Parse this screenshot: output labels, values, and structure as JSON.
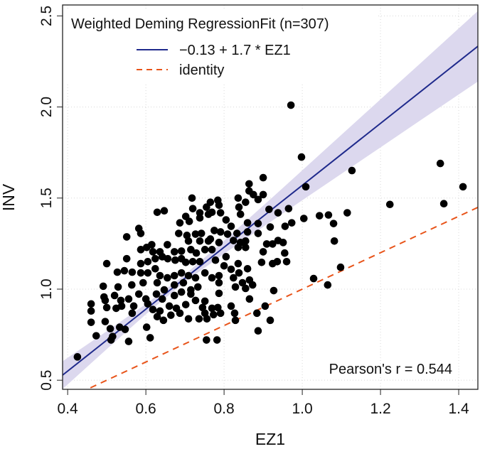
{
  "chart_data": {
    "type": "scatter",
    "title": "",
    "xlabel": "EZ1",
    "ylabel": "INV",
    "xlim": [
      0.387,
      1.449
    ],
    "ylim": [
      0.45,
      2.56
    ],
    "xticks": [
      "0.4",
      "0.6",
      "0.8",
      "1.0",
      "1.2",
      "1.4"
    ],
    "xtick_values": [
      0.4,
      0.6,
      0.8,
      1.0,
      1.2,
      1.4
    ],
    "yticks": [
      "0.5",
      "1.0",
      "1.5",
      "2.0",
      "2.5"
    ],
    "ytick_values": [
      0.5,
      1.0,
      1.5,
      2.0,
      2.5
    ],
    "grid": true,
    "legend": {
      "placement": "top-left",
      "title": "Weighted Deming RegressionFit (n=307)",
      "entries": [
        "−0.13 + 1.7 * EZ1",
        "identity"
      ]
    },
    "annotation": "Pearson's r = 0.544",
    "fit": {
      "intercept": -0.13,
      "slope": 1.7,
      "color": "#1f2a8c"
    },
    "identity": {
      "intercept": 0,
      "slope": 1,
      "color": "#e8541a"
    },
    "ci_band": {
      "color": "#dcd8ee",
      "x": [
        0.38,
        0.5,
        0.6,
        0.7,
        0.8,
        0.9,
        1.0,
        1.1,
        1.2,
        1.3,
        1.45
      ],
      "lower": [
        0.438,
        0.671,
        0.862,
        1.04,
        1.194,
        1.342,
        1.488,
        1.633,
        1.778,
        1.924,
        2.141
      ],
      "upper": [
        0.594,
        0.769,
        0.918,
        1.08,
        1.266,
        1.458,
        1.652,
        1.847,
        2.042,
        2.236,
        2.529
      ]
    },
    "points": [
      [
        0.425,
        0.628
      ],
      [
        0.971,
        2.01
      ],
      [
        0.998,
        1.725
      ],
      [
        1.009,
        1.562
      ],
      [
        1.127,
        1.651
      ],
      [
        1.353,
        1.69
      ],
      [
        1.411,
        1.562
      ],
      [
        1.362,
        1.469
      ],
      [
        1.224,
        1.465
      ],
      [
        1.115,
        1.419
      ],
      [
        1.08,
        1.36
      ],
      [
        1.082,
        1.264
      ],
      [
        1.098,
        1.12
      ],
      [
        1.029,
        1.058
      ],
      [
        1.065,
        1.023
      ],
      [
        1.004,
        1.388
      ],
      [
        1.044,
        1.403
      ],
      [
        1.067,
        1.407
      ],
      [
        0.9,
        1.612
      ],
      [
        0.864,
        1.578
      ],
      [
        0.864,
        1.539
      ],
      [
        0.875,
        1.519
      ],
      [
        0.9,
        1.519
      ],
      [
        0.887,
        1.492
      ],
      [
        0.718,
        1.5
      ],
      [
        0.755,
        1.45
      ],
      [
        0.765,
        1.477
      ],
      [
        0.784,
        1.488
      ],
      [
        0.787,
        1.461
      ],
      [
        0.836,
        1.5
      ],
      [
        0.855,
        1.477
      ],
      [
        0.838,
        1.45
      ],
      [
        0.842,
        1.411
      ],
      [
        0.72,
        1.442
      ],
      [
        0.738,
        1.419
      ],
      [
        0.738,
        1.391
      ],
      [
        0.76,
        1.411
      ],
      [
        0.769,
        1.422
      ],
      [
        0.791,
        1.419
      ],
      [
        0.629,
        1.422
      ],
      [
        0.647,
        1.43
      ],
      [
        0.702,
        1.399
      ],
      [
        0.711,
        1.372
      ],
      [
        0.687,
        1.364
      ],
      [
        0.805,
        1.38
      ],
      [
        0.818,
        1.345
      ],
      [
        0.86,
        1.364
      ],
      [
        0.887,
        1.36
      ],
      [
        0.915,
        1.438
      ],
      [
        0.938,
        1.419
      ],
      [
        0.965,
        1.442
      ],
      [
        0.956,
        1.345
      ],
      [
        0.973,
        1.364
      ],
      [
        0.582,
        1.333
      ],
      [
        0.587,
        1.306
      ],
      [
        0.551,
        1.287
      ],
      [
        0.684,
        1.306
      ],
      [
        0.705,
        1.295
      ],
      [
        0.727,
        1.302
      ],
      [
        0.742,
        1.306
      ],
      [
        0.775,
        1.322
      ],
      [
        0.791,
        1.314
      ],
      [
        0.809,
        1.302
      ],
      [
        0.833,
        1.306
      ],
      [
        0.86,
        1.314
      ],
      [
        0.887,
        1.306
      ],
      [
        0.918,
        1.341
      ],
      [
        0.709,
        1.264
      ],
      [
        0.738,
        1.264
      ],
      [
        0.76,
        1.264
      ],
      [
        0.765,
        1.275
      ],
      [
        0.787,
        1.256
      ],
      [
        0.824,
        1.267
      ],
      [
        0.842,
        1.256
      ],
      [
        0.855,
        1.264
      ],
      [
        0.836,
        1.229
      ],
      [
        0.855,
        1.229
      ],
      [
        0.909,
        1.248
      ],
      [
        0.924,
        1.248
      ],
      [
        0.938,
        1.267
      ],
      [
        0.951,
        1.256
      ],
      [
        0.955,
        1.198
      ],
      [
        0.9,
        1.205
      ],
      [
        0.587,
        1.217
      ],
      [
        0.602,
        1.229
      ],
      [
        0.615,
        1.244
      ],
      [
        0.618,
        1.205
      ],
      [
        0.636,
        1.205
      ],
      [
        0.655,
        1.244
      ],
      [
        0.673,
        1.205
      ],
      [
        0.691,
        1.209
      ],
      [
        0.715,
        1.217
      ],
      [
        0.729,
        1.198
      ],
      [
        0.751,
        1.217
      ],
      [
        0.769,
        1.217
      ],
      [
        0.778,
        1.159
      ],
      [
        0.805,
        1.178
      ],
      [
        0.5,
        1.14
      ],
      [
        0.551,
        1.167
      ],
      [
        0.587,
        1.14
      ],
      [
        0.605,
        1.151
      ],
      [
        0.624,
        1.167
      ],
      [
        0.642,
        1.178
      ],
      [
        0.656,
        1.167
      ],
      [
        0.675,
        1.159
      ],
      [
        0.691,
        1.167
      ],
      [
        0.702,
        1.147
      ],
      [
        0.72,
        1.151
      ],
      [
        0.738,
        1.151
      ],
      [
        0.896,
        1.147
      ],
      [
        0.924,
        1.14
      ],
      [
        0.936,
        1.151
      ],
      [
        0.96,
        1.151
      ],
      [
        0.8,
        1.128
      ],
      [
        0.818,
        1.109
      ],
      [
        0.836,
        1.14
      ],
      [
        0.838,
        1.089
      ],
      [
        0.86,
        1.112
      ],
      [
        0.527,
        1.093
      ],
      [
        0.545,
        1.101
      ],
      [
        0.565,
        1.093
      ],
      [
        0.587,
        1.089
      ],
      [
        0.605,
        1.089
      ],
      [
        0.624,
        1.112
      ],
      [
        0.636,
        1.074
      ],
      [
        0.655,
        1.062
      ],
      [
        0.673,
        1.074
      ],
      [
        0.691,
        1.089
      ],
      [
        0.709,
        1.074
      ],
      [
        0.727,
        1.062
      ],
      [
        0.751,
        1.089
      ],
      [
        0.769,
        1.062
      ],
      [
        0.787,
        1.074
      ],
      [
        0.824,
        1.062
      ],
      [
        0.847,
        1.035
      ],
      [
        0.865,
        1.05
      ],
      [
        0.873,
        1.023
      ],
      [
        0.491,
        1.016
      ],
      [
        0.529,
        1.012
      ],
      [
        0.564,
        1.023
      ],
      [
        0.593,
        1.035
      ],
      [
        0.629,
        1.035
      ],
      [
        0.647,
        0.996
      ],
      [
        0.673,
        1.023
      ],
      [
        0.696,
        1.035
      ],
      [
        0.715,
        0.996
      ],
      [
        0.733,
        1.012
      ],
      [
        0.787,
        1.035
      ],
      [
        0.787,
        0.977
      ],
      [
        0.829,
        1.012
      ],
      [
        0.855,
        1.004
      ],
      [
        0.927,
        0.992
      ],
      [
        0.493,
        0.957
      ],
      [
        0.52,
        0.965
      ],
      [
        0.536,
        0.938
      ],
      [
        0.556,
        0.946
      ],
      [
        0.582,
        0.973
      ],
      [
        0.6,
        0.946
      ],
      [
        0.627,
        0.973
      ],
      [
        0.642,
        0.946
      ],
      [
        0.673,
        0.965
      ],
      [
        0.691,
        0.984
      ],
      [
        0.715,
        0.973
      ],
      [
        0.727,
        0.938
      ],
      [
        0.751,
        0.934
      ],
      [
        0.46,
        0.919
      ],
      [
        0.46,
        0.88
      ],
      [
        0.496,
        0.938
      ],
      [
        0.5,
        0.899
      ],
      [
        0.524,
        0.895
      ],
      [
        0.538,
        0.907
      ],
      [
        0.569,
        0.907
      ],
      [
        0.605,
        0.919
      ],
      [
        0.618,
        0.888
      ],
      [
        0.636,
        0.88
      ],
      [
        0.66,
        0.907
      ],
      [
        0.678,
        0.895
      ],
      [
        0.702,
        0.915
      ],
      [
        0.745,
        0.899
      ],
      [
        0.769,
        0.895
      ],
      [
        0.784,
        0.899
      ],
      [
        0.818,
        0.907
      ],
      [
        0.865,
        0.946
      ],
      [
        0.565,
        0.868
      ],
      [
        0.629,
        0.849
      ],
      [
        0.645,
        0.829
      ],
      [
        0.664,
        0.857
      ],
      [
        0.687,
        0.868
      ],
      [
        0.709,
        0.837
      ],
      [
        0.736,
        0.837
      ],
      [
        0.751,
        0.868
      ],
      [
        0.756,
        0.837
      ],
      [
        0.773,
        0.86
      ],
      [
        0.791,
        0.868
      ],
      [
        0.827,
        0.868
      ],
      [
        0.829,
        0.829
      ],
      [
        0.884,
        0.868
      ],
      [
        0.905,
        0.907
      ],
      [
        0.918,
        0.829
      ],
      [
        0.46,
        0.818
      ],
      [
        0.496,
        0.822
      ],
      [
        0.509,
        0.783
      ],
      [
        0.533,
        0.791
      ],
      [
        0.547,
        0.779
      ],
      [
        0.602,
        0.791
      ],
      [
        0.887,
        0.771
      ],
      [
        0.473,
        0.744
      ],
      [
        0.515,
        0.74
      ],
      [
        0.511,
        0.721
      ],
      [
        0.556,
        0.713
      ],
      [
        0.611,
        0.733
      ],
      [
        0.755,
        0.721
      ],
      [
        0.782,
        0.721
      ]
    ]
  }
}
